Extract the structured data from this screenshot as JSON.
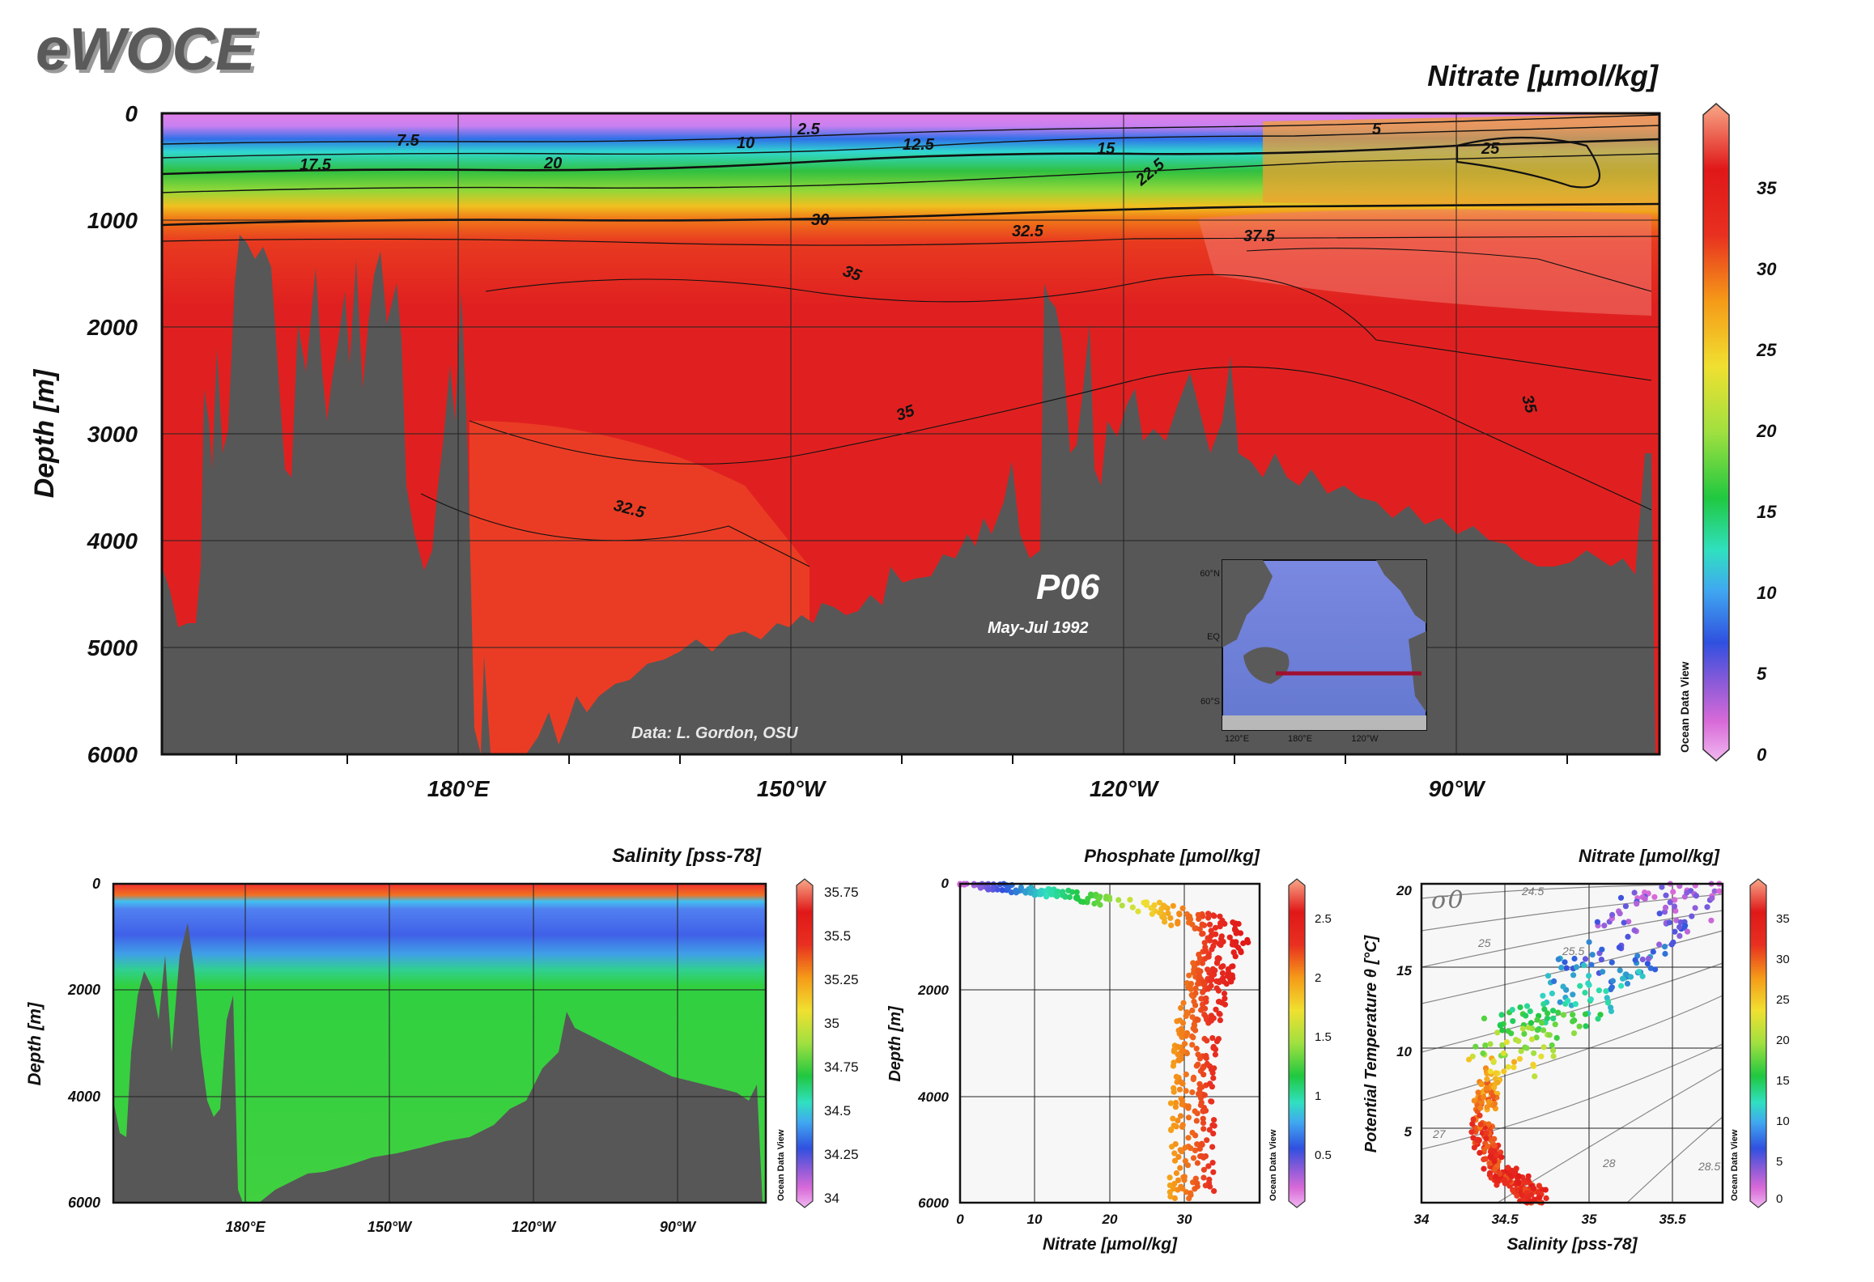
{
  "logo": "eWOCE",
  "section": {
    "title": "Nitrate [µmol/kg]",
    "ylabel": "Depth [m]",
    "yticks": [
      "0",
      "1000",
      "2000",
      "3000",
      "4000",
      "5000",
      "6000"
    ],
    "xticks": [
      "180°E",
      "150°W",
      "120°W",
      "90°W"
    ],
    "contour_labels": [
      "2.5",
      "5",
      "7.5",
      "10",
      "12.5",
      "15",
      "17.5",
      "20",
      "22.5",
      "25",
      "30",
      "32.5",
      "35",
      "37.5"
    ],
    "cruise": "P06",
    "dates": "May-Jul 1992",
    "credit": "Data: L. Gordon, OSU",
    "colorbar_ticks": [
      "35",
      "30",
      "25",
      "20",
      "15",
      "10",
      "5",
      "0"
    ],
    "watermark": "Ocean Data View",
    "inset": {
      "lat_labels": [
        "60°N",
        "EQ",
        "60°S"
      ],
      "lon_labels": [
        "120°E",
        "180°E",
        "120°W"
      ]
    }
  },
  "salinity": {
    "title": "Salinity [pss-78]",
    "ylabel": "Depth [m]",
    "yticks": [
      "0",
      "2000",
      "4000",
      "6000"
    ],
    "xticks": [
      "180°E",
      "150°W",
      "120°W",
      "90°W"
    ],
    "colorbar_ticks": [
      "35.75",
      "35.5",
      "35.25",
      "35",
      "34.75",
      "34.5",
      "34.25",
      "34"
    ],
    "watermark": "Ocean Data View"
  },
  "phosphate": {
    "title": "Phosphate [µmol/kg]",
    "ylabel": "Depth [m]",
    "xlabel": "Nitrate [µmol/kg]",
    "yticks": [
      "0",
      "2000",
      "4000",
      "6000"
    ],
    "xticks": [
      "0",
      "10",
      "20",
      "30"
    ],
    "colorbar_ticks": [
      "2.5",
      "2",
      "1.5",
      "1",
      "0.5"
    ],
    "watermark": "Ocean Data View"
  },
  "ts": {
    "title": "Nitrate [µmol/kg]",
    "ylabel": "Potential Temperature θ [°C]",
    "xlabel": "Salinity [pss-78]",
    "yticks": [
      "20",
      "15",
      "10",
      "5"
    ],
    "xticks": [
      "34",
      "34.5",
      "35",
      "35.5"
    ],
    "sigma_label": "σ0",
    "density_labels": [
      "24.5",
      "25",
      "25.5",
      "27",
      "28",
      "28.5"
    ],
    "colorbar_ticks": [
      "35",
      "30",
      "25",
      "20",
      "15",
      "10",
      "5",
      "0"
    ],
    "watermark": "Ocean Data View"
  },
  "chart_data": [
    {
      "type": "heatmap",
      "title": "Nitrate [µmol/kg]",
      "ylabel": "Depth [m]",
      "ylim": [
        6000,
        0
      ],
      "x_ticks": [
        "180°E",
        "150°W",
        "120°W",
        "90°W"
      ],
      "colorbar_range": [
        0,
        40
      ],
      "nitrate_vs_depth_m": {
        "depth": [
          0,
          100,
          300,
          500,
          700,
          1000,
          2000,
          3000,
          4000,
          5000
        ],
        "nitrate": [
          1,
          5,
          15,
          22,
          27,
          32,
          35,
          35,
          33,
          32
        ]
      }
    },
    {
      "type": "heatmap",
      "title": "Salinity [pss-78]",
      "ylim": [
        6000,
        0
      ],
      "colorbar_range": [
        34,
        35.8
      ],
      "salinity_vs_depth_m": {
        "depth": [
          0,
          100,
          400,
          800,
          1200,
          2000,
          4000
        ],
        "salinity": [
          35.5,
          35.2,
          34.6,
          34.4,
          34.5,
          34.66,
          34.7
        ]
      }
    },
    {
      "type": "scatter",
      "title": "Phosphate [µmol/kg]",
      "xlabel": "Nitrate [µmol/kg]",
      "ylabel": "Depth [m]",
      "xlim": [
        0,
        40
      ],
      "ylim": [
        6000,
        0
      ],
      "trend": {
        "depth": [
          0,
          100,
          300,
          600,
          1000,
          1500,
          2500,
          4000,
          5500
        ],
        "nitrate": [
          1,
          8,
          20,
          30,
          36,
          34,
          32,
          31,
          31
        ]
      }
    },
    {
      "type": "scatter",
      "title": "Nitrate [µmol/kg]",
      "xlabel": "Salinity [pss-78]",
      "ylabel": "Potential Temperature θ [°C]",
      "xlim": [
        34,
        35.8
      ],
      "ylim": [
        1,
        20
      ],
      "trend": {
        "salinity": [
          35.6,
          35.2,
          34.9,
          34.6,
          34.4,
          34.35,
          34.45,
          34.6,
          34.7
        ],
        "theta": [
          20,
          16,
          13,
          11,
          8,
          5,
          3,
          2,
          1.2
        ],
        "nitrate": [
          1,
          5,
          12,
          20,
          28,
          33,
          34,
          35,
          34
        ]
      }
    }
  ]
}
